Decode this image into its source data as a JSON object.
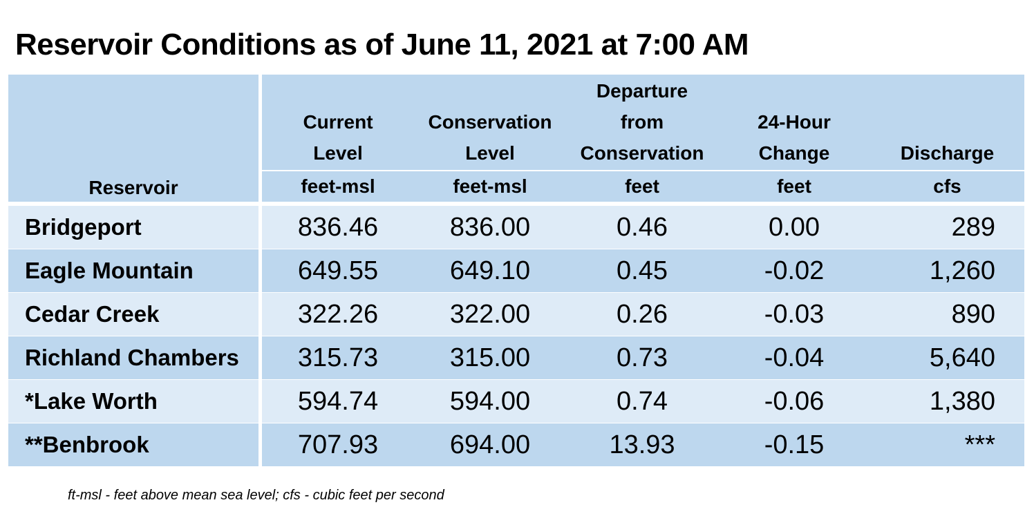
{
  "title": "Reservoir Conditions as of June 11, 2021 at 7:00 AM",
  "columns": [
    {
      "header": "Reservoir",
      "unit": ""
    },
    {
      "header_lines": [
        "Current",
        "Level"
      ],
      "unit": "feet-msl"
    },
    {
      "header_lines": [
        "Conservation",
        "Level"
      ],
      "unit": "feet-msl"
    },
    {
      "header_lines": [
        "Departure",
        "from",
        "Conservation"
      ],
      "unit": "feet"
    },
    {
      "header_lines": [
        "24-Hour",
        "Change"
      ],
      "unit": "feet"
    },
    {
      "header_lines": [
        "Discharge"
      ],
      "unit": "cfs"
    }
  ],
  "rows": [
    {
      "reservoir": "Bridgeport",
      "current": "836.46",
      "conservation": "836.00",
      "departure": "0.46",
      "change": "0.00",
      "discharge": "289"
    },
    {
      "reservoir": "Eagle Mountain",
      "current": "649.55",
      "conservation": "649.10",
      "departure": "0.45",
      "change": "-0.02",
      "discharge": "1,260"
    },
    {
      "reservoir": "Cedar Creek",
      "current": "322.26",
      "conservation": "322.00",
      "departure": "0.26",
      "change": "-0.03",
      "discharge": "890"
    },
    {
      "reservoir": "Richland Chambers",
      "current": "315.73",
      "conservation": "315.00",
      "departure": "0.73",
      "change": "-0.04",
      "discharge": "5,640"
    },
    {
      "reservoir": "*Lake Worth",
      "current": "594.74",
      "conservation": "594.00",
      "departure": "0.74",
      "change": "-0.06",
      "discharge": "1,380"
    },
    {
      "reservoir": "**Benbrook",
      "current": "707.93",
      "conservation": "694.00",
      "departure": "13.93",
      "change": "-0.15",
      "discharge": "***"
    }
  ],
  "footnote": "ft-msl - feet above mean sea level; cfs - cubic feet per second",
  "colors": {
    "header_bg": "#bdd7ee",
    "row_light": "#deebf7",
    "row_dark": "#bdd7ee"
  }
}
